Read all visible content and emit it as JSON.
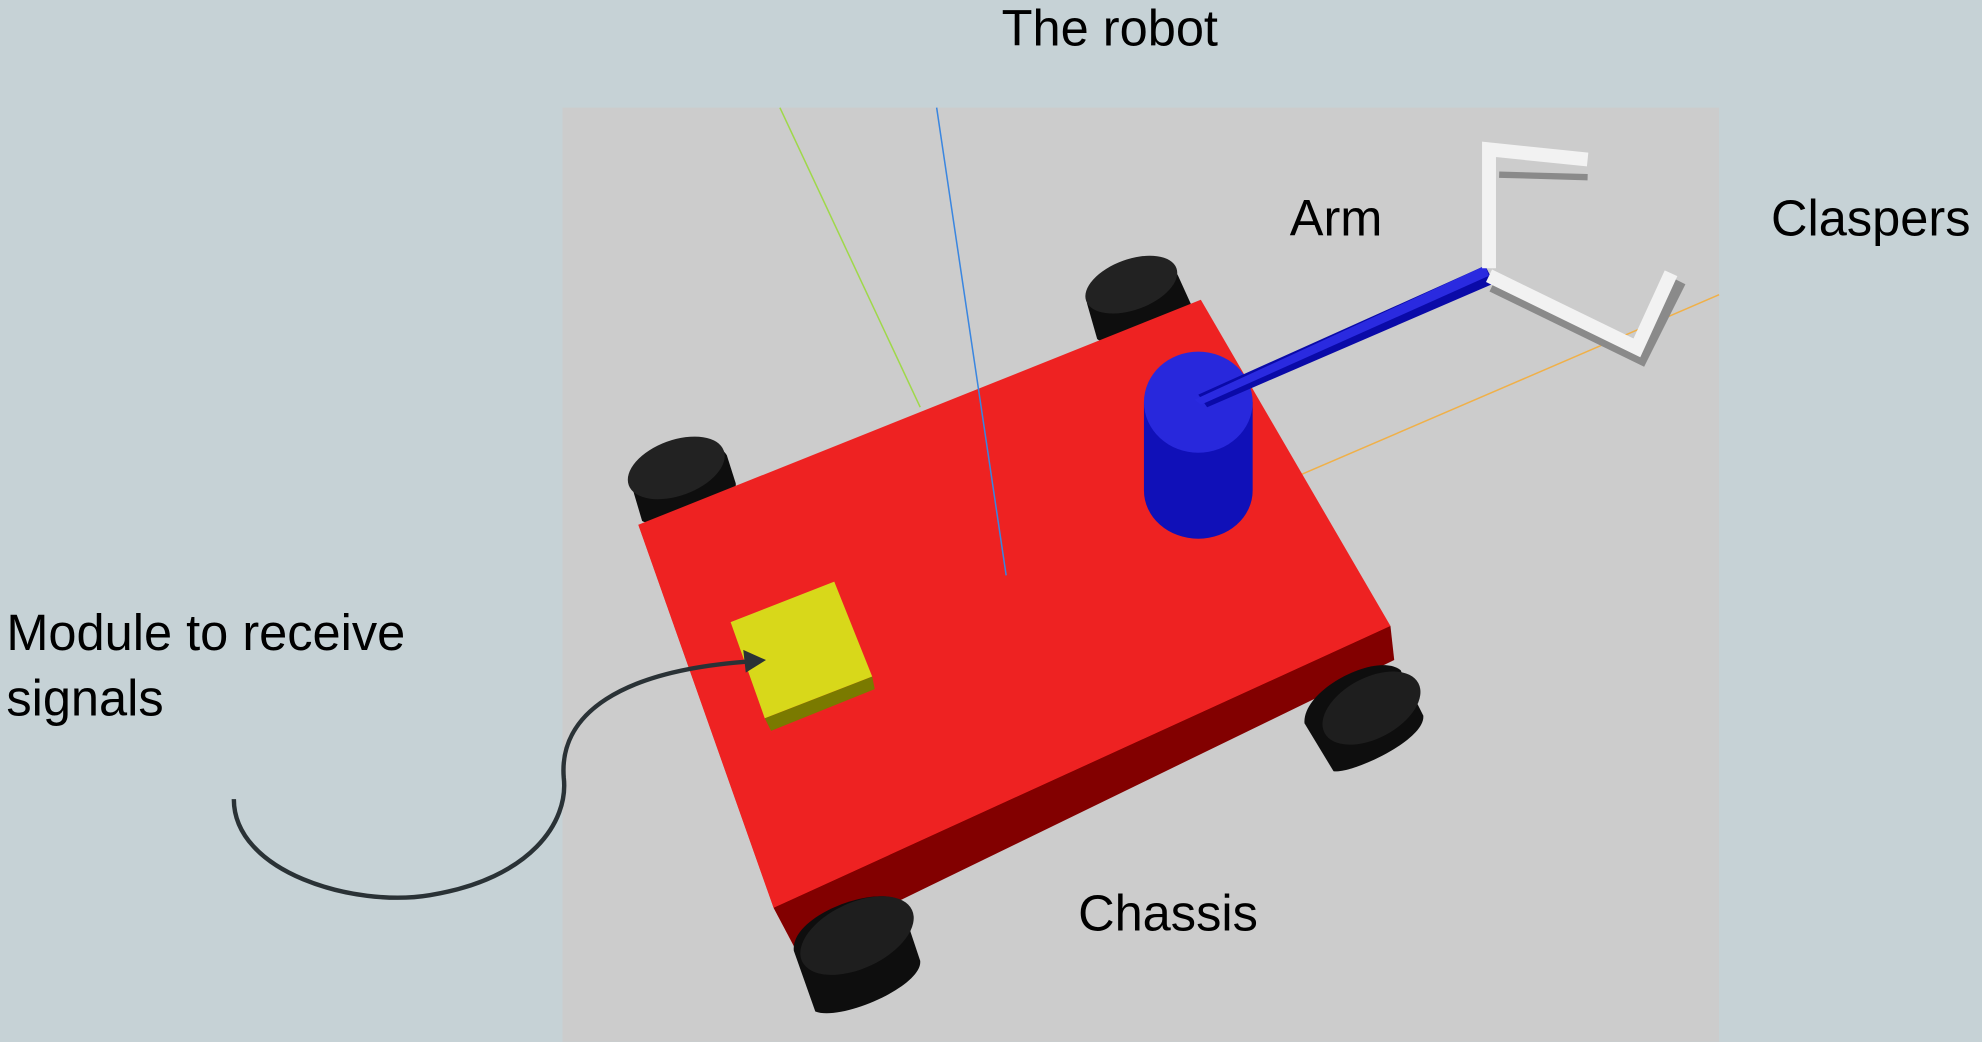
{
  "title": "The robot",
  "labels": {
    "arm": "Arm",
    "claspers": "Claspers",
    "chassis": "Chassis",
    "module": [
      "Module to receive",
      "signals"
    ]
  }
}
